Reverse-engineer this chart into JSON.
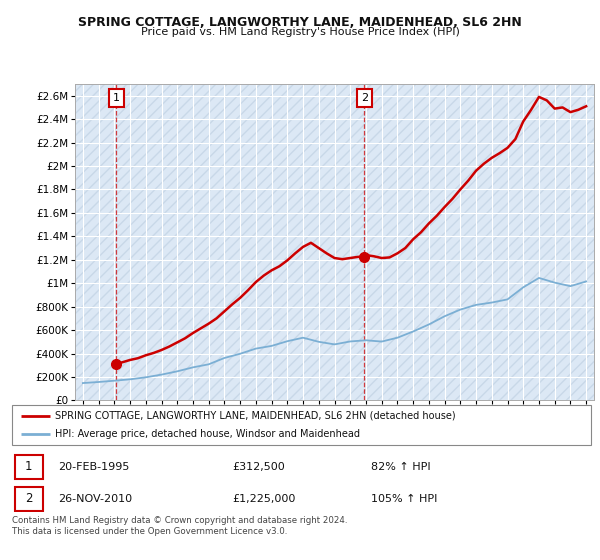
{
  "title": "SPRING COTTAGE, LANGWORTHY LANE, MAIDENHEAD, SL6 2HN",
  "subtitle": "Price paid vs. HM Land Registry's House Price Index (HPI)",
  "ylim": [
    0,
    2700000
  ],
  "yticks": [
    0,
    200000,
    400000,
    600000,
    800000,
    1000000,
    1200000,
    1400000,
    1600000,
    1800000,
    2000000,
    2200000,
    2400000,
    2600000
  ],
  "ytick_labels": [
    "£0",
    "£200K",
    "£400K",
    "£600K",
    "£800K",
    "£1M",
    "£1.2M",
    "£1.4M",
    "£1.6M",
    "£1.8M",
    "£2M",
    "£2.2M",
    "£2.4M",
    "£2.6M"
  ],
  "xlim_start": 1992.5,
  "xlim_end": 2025.5,
  "xticks": [
    1993,
    1994,
    1995,
    1996,
    1997,
    1998,
    1999,
    2000,
    2001,
    2002,
    2003,
    2004,
    2005,
    2006,
    2007,
    2008,
    2009,
    2010,
    2011,
    2012,
    2013,
    2014,
    2015,
    2016,
    2017,
    2018,
    2019,
    2020,
    2021,
    2022,
    2023,
    2024,
    2025
  ],
  "sale1_x": 1995.13,
  "sale1_y": 312500,
  "sale1_label": "1",
  "sale1_date": "20-FEB-1995",
  "sale1_price": "£312,500",
  "sale1_hpi": "82% ↑ HPI",
  "sale2_x": 2010.9,
  "sale2_y": 1225000,
  "sale2_label": "2",
  "sale2_date": "26-NOV-2010",
  "sale2_price": "£1,225,000",
  "sale2_hpi": "105% ↑ HPI",
  "line_color_red": "#cc0000",
  "line_color_blue": "#7bafd4",
  "legend_label_red": "SPRING COTTAGE, LANGWORTHY LANE, MAIDENHEAD, SL6 2HN (detached house)",
  "legend_label_blue": "HPI: Average price, detached house, Windsor and Maidenhead",
  "footer": "Contains HM Land Registry data © Crown copyright and database right 2024.\nThis data is licensed under the Open Government Licence v3.0.",
  "background_color": "#ffffff",
  "plot_bg_color": "#dce8f5",
  "grid_color": "#ffffff",
  "hatch_color": "#c8d8e8",
  "hpi_years": [
    1993,
    1994,
    1995,
    1996,
    1997,
    1998,
    1999,
    2000,
    2001,
    2002,
    2003,
    2004,
    2005,
    2006,
    2007,
    2008,
    2009,
    2010,
    2011,
    2012,
    2013,
    2014,
    2015,
    2016,
    2017,
    2018,
    2019,
    2020,
    2021,
    2022,
    2023,
    2024,
    2025
  ],
  "hpi_values": [
    148000,
    157000,
    168000,
    180000,
    197000,
    220000,
    248000,
    282000,
    308000,
    362000,
    398000,
    442000,
    465000,
    505000,
    535000,
    500000,
    478000,
    503000,
    513000,
    502000,
    535000,
    588000,
    648000,
    718000,
    775000,
    815000,
    835000,
    862000,
    965000,
    1045000,
    1005000,
    975000,
    1015000
  ],
  "price_years": [
    1995.13,
    1995.5,
    1996,
    1996.5,
    1997,
    1997.5,
    1998,
    1998.5,
    1999,
    1999.5,
    2000,
    2000.5,
    2001,
    2001.5,
    2002,
    2002.5,
    2003,
    2003.5,
    2004,
    2004.5,
    2005,
    2005.5,
    2006,
    2006.5,
    2007,
    2007.5,
    2008,
    2008.5,
    2009,
    2009.5,
    2010,
    2010.5,
    2010.9,
    2011,
    2011.5,
    2012,
    2012.5,
    2013,
    2013.5,
    2014,
    2014.5,
    2015,
    2015.5,
    2016,
    2016.5,
    2017,
    2017.5,
    2018,
    2018.5,
    2019,
    2019.5,
    2020,
    2020.5,
    2021,
    2021.5,
    2022,
    2022.5,
    2023,
    2023.5,
    2024,
    2024.5,
    2025
  ],
  "price_values": [
    312500,
    325000,
    345000,
    360000,
    385000,
    405000,
    430000,
    460000,
    495000,
    530000,
    575000,
    615000,
    655000,
    700000,
    760000,
    820000,
    875000,
    940000,
    1010000,
    1065000,
    1110000,
    1145000,
    1195000,
    1255000,
    1310000,
    1345000,
    1300000,
    1255000,
    1215000,
    1205000,
    1215000,
    1225000,
    1225000,
    1240000,
    1230000,
    1215000,
    1220000,
    1255000,
    1300000,
    1375000,
    1435000,
    1510000,
    1575000,
    1650000,
    1720000,
    1800000,
    1875000,
    1960000,
    2020000,
    2070000,
    2110000,
    2155000,
    2230000,
    2380000,
    2480000,
    2590000,
    2560000,
    2490000,
    2500000,
    2460000,
    2480000,
    2510000
  ]
}
